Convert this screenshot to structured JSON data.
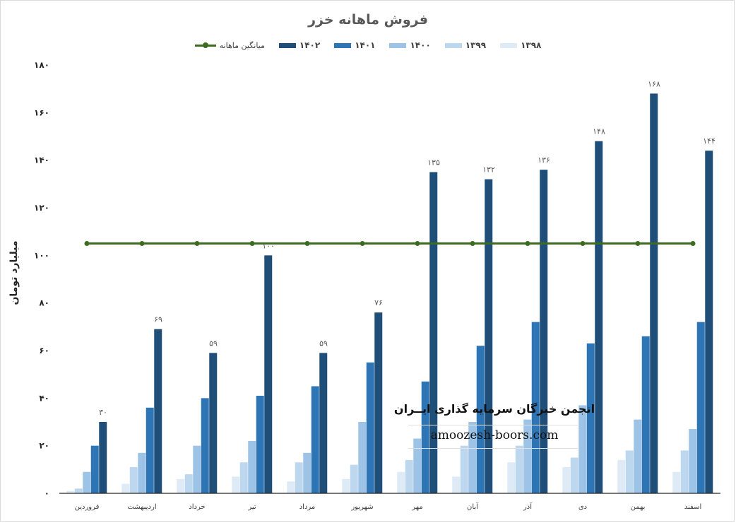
{
  "chart_data": {
    "type": "bar",
    "title": "فروش ماهانه خزر",
    "ylabel": "میلیارد تومان",
    "xlabel": "",
    "ylim": [
      0,
      180
    ],
    "yticks": [
      "۰",
      "۲۰",
      "۴۰",
      "۶۰",
      "۸۰",
      "۱۰۰",
      "۱۲۰",
      "۱۴۰",
      "۱۶۰",
      "۱۸۰"
    ],
    "grid": false,
    "legend_position": "top",
    "categories": [
      "فروردین",
      "اردیبهشت",
      "خرداد",
      "تیر",
      "مرداد",
      "شهریور",
      "مهر",
      "آبان",
      "آذر",
      "دی",
      "بهمن",
      "اسفند"
    ],
    "series": [
      {
        "name": "۱۳۹۸",
        "color": "#deebf7",
        "values": [
          1,
          4,
          6,
          7,
          5,
          6,
          9,
          7,
          13,
          11,
          14,
          9
        ]
      },
      {
        "name": "۱۳۹۹",
        "color": "#bdd7ee",
        "values": [
          2,
          11,
          8,
          13,
          13,
          12,
          14,
          20,
          20,
          15,
          18,
          18
        ]
      },
      {
        "name": "۱۴۰۰",
        "color": "#9dc3e6",
        "values": [
          9,
          17,
          20,
          22,
          17,
          30,
          23,
          30,
          31,
          37,
          31,
          27
        ]
      },
      {
        "name": "۱۴۰۱",
        "color": "#2e75b6",
        "values": [
          20,
          36,
          40,
          41,
          45,
          55,
          47,
          62,
          72,
          63,
          66,
          72
        ]
      },
      {
        "name": "۱۴۰۲",
        "color": "#1f4e79",
        "values": [
          30,
          69,
          59,
          100,
          59,
          76,
          135,
          132,
          136,
          148,
          168,
          144
        ]
      }
    ],
    "data_labels": [
      "۳۰",
      "۶۹",
      "۵۹",
      "۱۰۰",
      "۵۹",
      "۷۶",
      "۱۳۵",
      "۱۳۲",
      "۱۳۶",
      "۱۴۸",
      "۱۶۸",
      "۱۴۴"
    ],
    "average_line": {
      "name": "میانگین ماهانه",
      "color": "#3d6b22",
      "value": 105
    }
  },
  "watermark": {
    "line1": "انجمن خبرگان سرمایه گذاری ایــران",
    "line2": "amoozesh-boors.com"
  }
}
